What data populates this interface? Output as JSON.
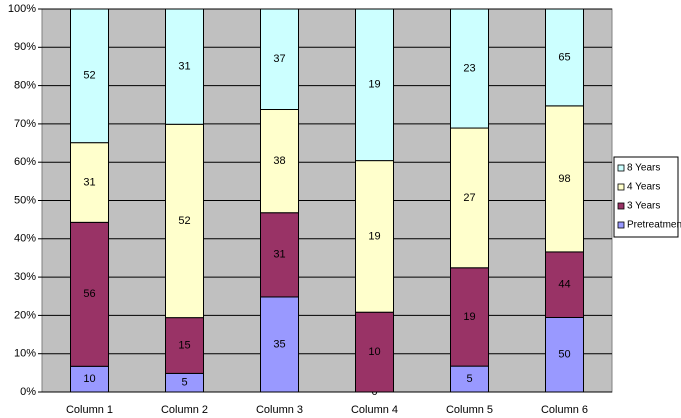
{
  "chart_data": {
    "type": "percent_stacked_bar",
    "categories": [
      "Column 1",
      "Column 2",
      "Column 3",
      "Column 4",
      "Column 5",
      "Column 6"
    ],
    "series": [
      {
        "name": "Pretreatment",
        "color": "#9999ff",
        "values": [
          10,
          5,
          35,
          0,
          5,
          50
        ]
      },
      {
        "name": "3 Years",
        "color": "#993366",
        "values": [
          56,
          15,
          31,
          10,
          19,
          44
        ]
      },
      {
        "name": "4 Years",
        "color": "#ffffcc",
        "values": [
          31,
          52,
          38,
          19,
          27,
          98
        ]
      },
      {
        "name": "8 Years",
        "color": "#ccffff",
        "values": [
          52,
          31,
          37,
          19,
          23,
          65
        ]
      }
    ],
    "ylim": [
      0,
      100
    ],
    "yticks": [
      {
        "value": 0,
        "label": "0%"
      },
      {
        "value": 10,
        "label": "10%"
      },
      {
        "value": 20,
        "label": "20%"
      },
      {
        "value": 30,
        "label": "30%"
      },
      {
        "value": 40,
        "label": "40%"
      },
      {
        "value": 50,
        "label": "50%"
      },
      {
        "value": 60,
        "label": "60%"
      },
      {
        "value": 70,
        "label": "70%"
      },
      {
        "value": 80,
        "label": "80%"
      },
      {
        "value": 90,
        "label": "90%"
      },
      {
        "value": 100,
        "label": "100%"
      }
    ],
    "grid": true,
    "plot_background": "#c0c0c0",
    "legend": "right"
  }
}
